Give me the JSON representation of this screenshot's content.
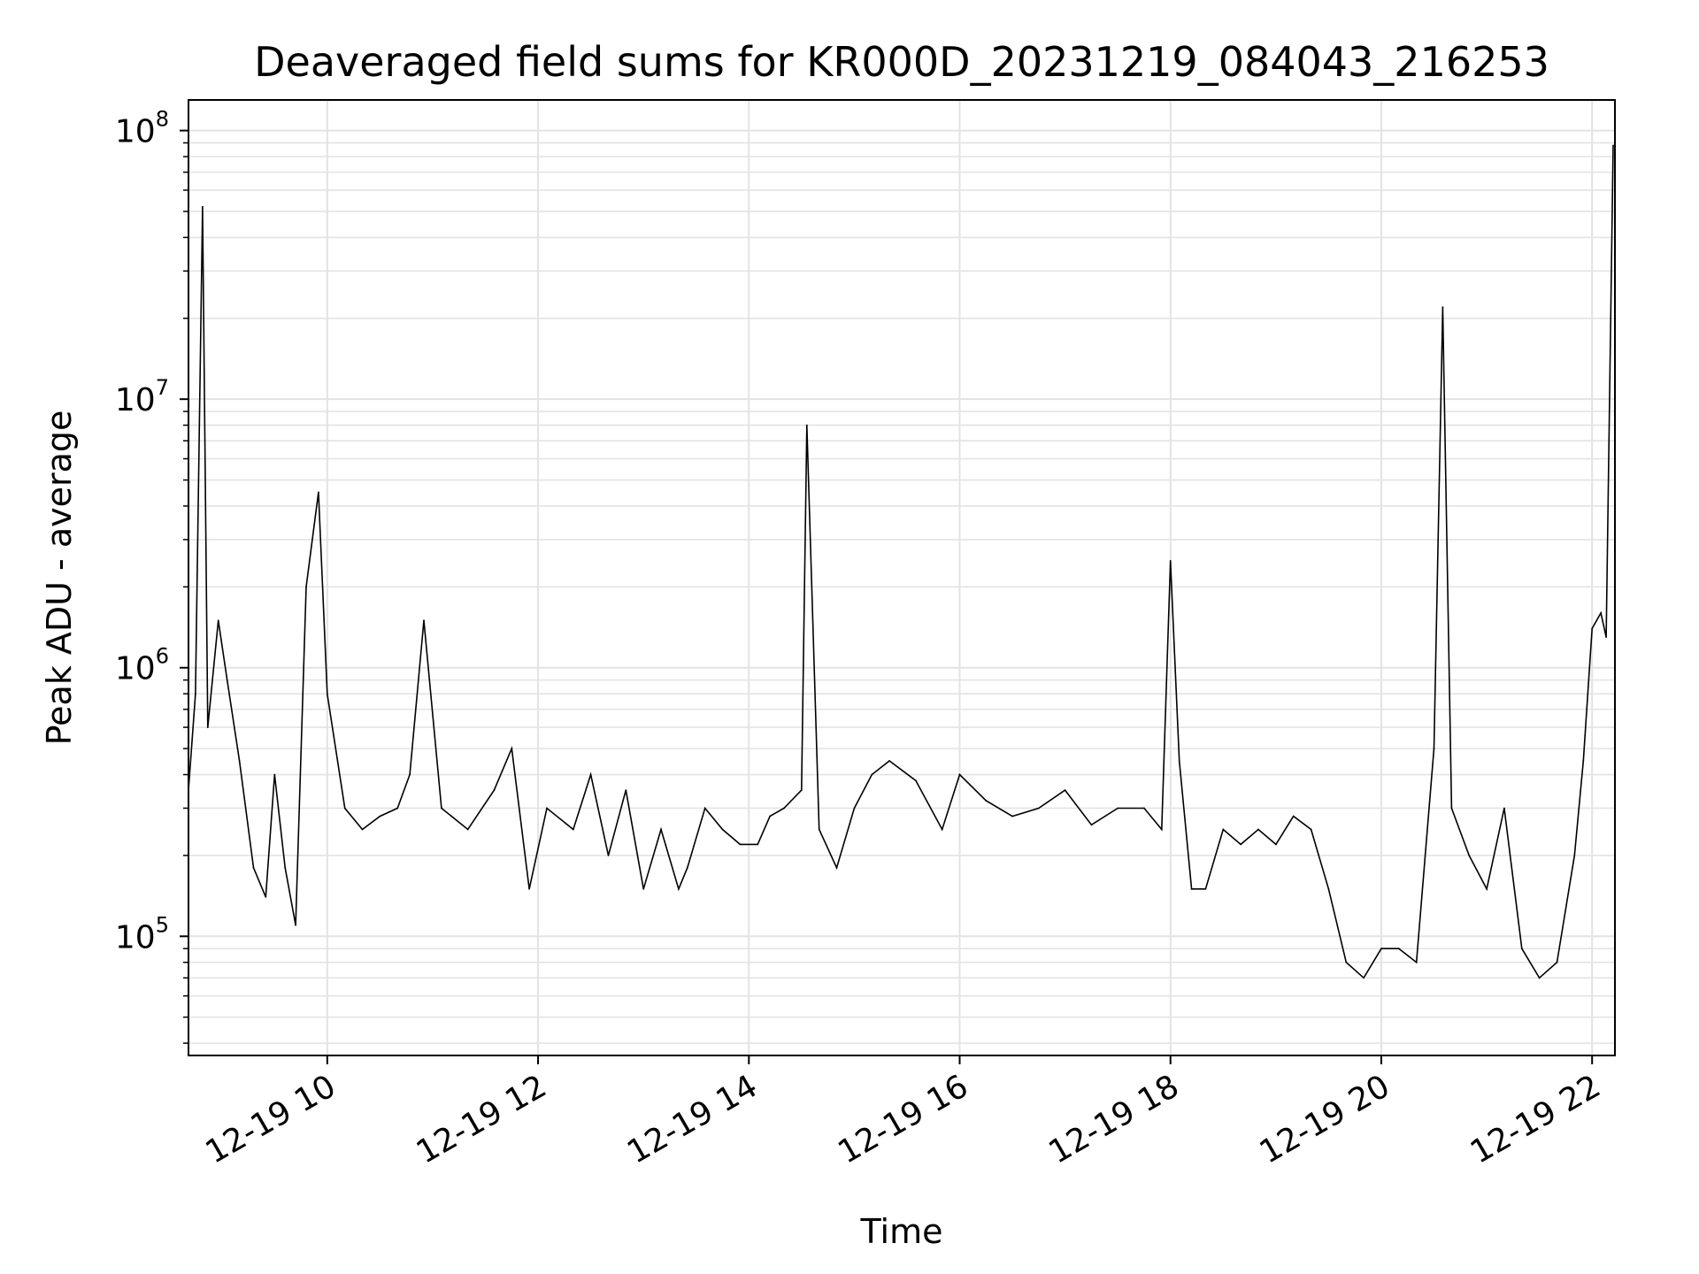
{
  "chart_data": {
    "type": "line",
    "title": "Deaveraged field sums for KR000D_20231219_084043_216253",
    "xlabel": "Time",
    "ylabel": "Peak ADU - average",
    "yscale": "log",
    "ylim": [
      36000,
      130000000
    ],
    "xlim": [
      "2023-12-19 08:41",
      "2023-12-19 22:13"
    ],
    "x_ticks": [
      {
        "value": "2023-12-19 10:00",
        "label": "12-19 10"
      },
      {
        "value": "2023-12-19 12:00",
        "label": "12-19 12"
      },
      {
        "value": "2023-12-19 14:00",
        "label": "12-19 14"
      },
      {
        "value": "2023-12-19 16:00",
        "label": "12-19 16"
      },
      {
        "value": "2023-12-19 18:00",
        "label": "12-19 18"
      },
      {
        "value": "2023-12-19 20:00",
        "label": "12-19 20"
      },
      {
        "value": "2023-12-19 22:00",
        "label": "12-19 22"
      }
    ],
    "y_ticks": [
      {
        "value": 100000,
        "base": "10",
        "exp": "5"
      },
      {
        "value": 1000000,
        "base": "10",
        "exp": "6"
      },
      {
        "value": 10000000,
        "base": "10",
        "exp": "7"
      },
      {
        "value": 100000000,
        "base": "10",
        "exp": "8"
      }
    ],
    "grid": true,
    "line_color": "#000000",
    "series": [
      {
        "name": "",
        "x": [
          "2023-12-19 08:41",
          "2023-12-19 08:45",
          "2023-12-19 08:49",
          "2023-12-19 08:52",
          "2023-12-19 08:58",
          "2023-12-19 09:03",
          "2023-12-19 09:10",
          "2023-12-19 09:18",
          "2023-12-19 09:25",
          "2023-12-19 09:30",
          "2023-12-19 09:36",
          "2023-12-19 09:42",
          "2023-12-19 09:48",
          "2023-12-19 09:55",
          "2023-12-19 10:00",
          "2023-12-19 10:10",
          "2023-12-19 10:20",
          "2023-12-19 10:30",
          "2023-12-19 10:40",
          "2023-12-19 10:47",
          "2023-12-19 10:55",
          "2023-12-19 11:05",
          "2023-12-19 11:20",
          "2023-12-19 11:35",
          "2023-12-19 11:45",
          "2023-12-19 11:55",
          "2023-12-19 12:05",
          "2023-12-19 12:20",
          "2023-12-19 12:30",
          "2023-12-19 12:40",
          "2023-12-19 12:50",
          "2023-12-19 13:00",
          "2023-12-19 13:10",
          "2023-12-19 13:20",
          "2023-12-19 13:25",
          "2023-12-19 13:35",
          "2023-12-19 13:45",
          "2023-12-19 13:55",
          "2023-12-19 14:05",
          "2023-12-19 14:12",
          "2023-12-19 14:20",
          "2023-12-19 14:30",
          "2023-12-19 14:33",
          "2023-12-19 14:40",
          "2023-12-19 14:50",
          "2023-12-19 15:00",
          "2023-12-19 15:10",
          "2023-12-19 15:20",
          "2023-12-19 15:35",
          "2023-12-19 15:50",
          "2023-12-19 16:00",
          "2023-12-19 16:15",
          "2023-12-19 16:30",
          "2023-12-19 16:45",
          "2023-12-19 17:00",
          "2023-12-19 17:15",
          "2023-12-19 17:30",
          "2023-12-19 17:45",
          "2023-12-19 17:55",
          "2023-12-19 18:00",
          "2023-12-19 18:05",
          "2023-12-19 18:12",
          "2023-12-19 18:20",
          "2023-12-19 18:30",
          "2023-12-19 18:40",
          "2023-12-19 18:50",
          "2023-12-19 19:00",
          "2023-12-19 19:10",
          "2023-12-19 19:20",
          "2023-12-19 19:30",
          "2023-12-19 19:40",
          "2023-12-19 19:50",
          "2023-12-19 20:00",
          "2023-12-19 20:10",
          "2023-12-19 20:20",
          "2023-12-19 20:30",
          "2023-12-19 20:35",
          "2023-12-19 20:40",
          "2023-12-19 20:50",
          "2023-12-19 21:00",
          "2023-12-19 21:10",
          "2023-12-19 21:20",
          "2023-12-19 21:30",
          "2023-12-19 21:40",
          "2023-12-19 21:50",
          "2023-12-19 21:55",
          "2023-12-19 22:00",
          "2023-12-19 22:05",
          "2023-12-19 22:08",
          "2023-12-19 22:12"
        ],
        "y": [
          350000,
          800000,
          52000000,
          600000,
          1500000,
          900000,
          450000,
          180000,
          140000,
          400000,
          180000,
          110000,
          2000000,
          4500000,
          800000,
          300000,
          250000,
          280000,
          300000,
          400000,
          1500000,
          300000,
          250000,
          350000,
          500000,
          150000,
          300000,
          250000,
          400000,
          200000,
          350000,
          150000,
          250000,
          150000,
          180000,
          300000,
          250000,
          220000,
          220000,
          280000,
          300000,
          350000,
          8000000,
          250000,
          180000,
          300000,
          400000,
          450000,
          380000,
          250000,
          400000,
          320000,
          280000,
          300000,
          350000,
          260000,
          300000,
          300000,
          250000,
          2500000,
          450000,
          150000,
          150000,
          250000,
          220000,
          250000,
          220000,
          280000,
          250000,
          150000,
          80000,
          70000,
          90000,
          90000,
          80000,
          500000,
          22000000,
          300000,
          200000,
          150000,
          300000,
          90000,
          70000,
          80000,
          200000,
          450000,
          1400000,
          1600000,
          1300000,
          88000000
        ]
      }
    ]
  }
}
